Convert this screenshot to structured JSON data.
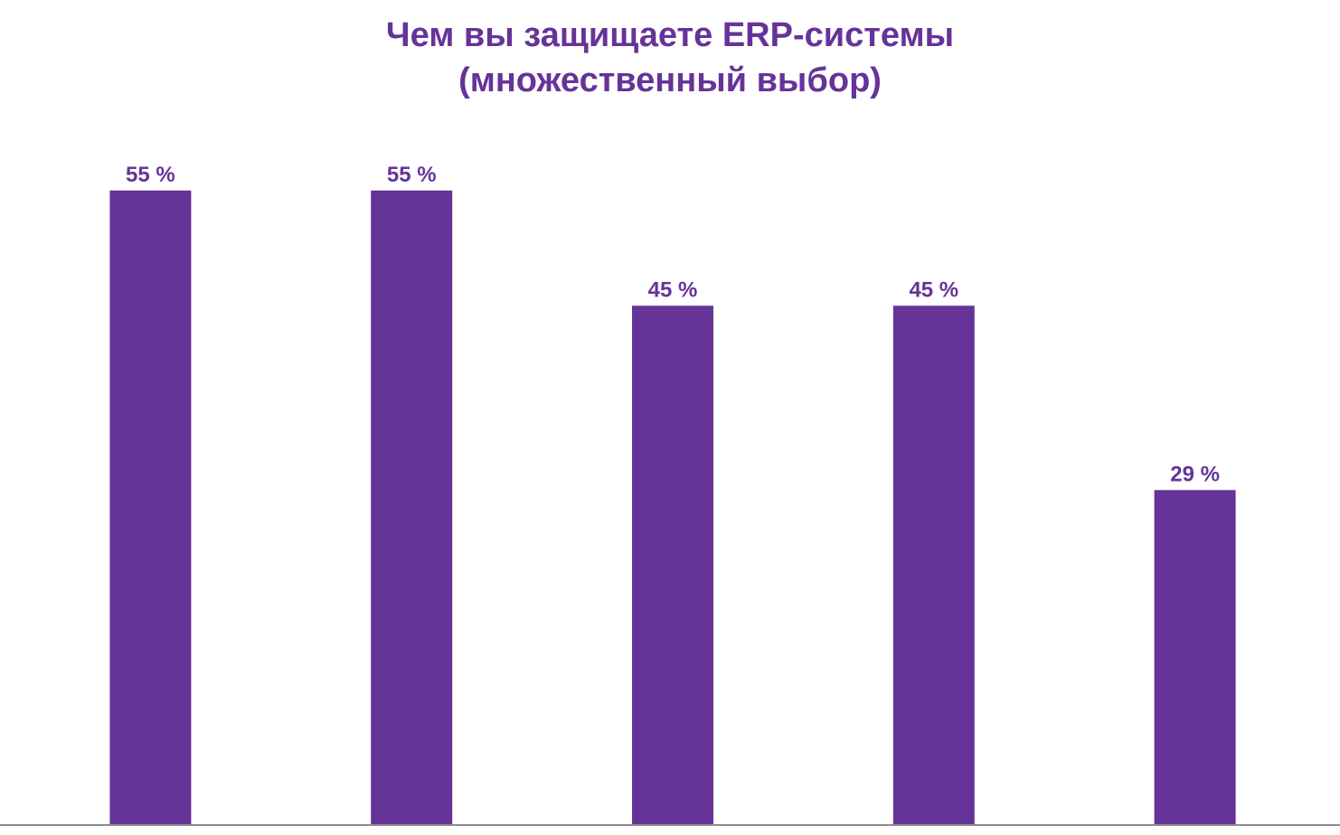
{
  "chart_data": {
    "type": "bar",
    "title": "Чем вы защищаете ERP-системы",
    "subtitle": "(множественный выбор)",
    "categories": [
      "",
      "",
      "",
      "",
      ""
    ],
    "values": [
      55,
      55,
      45,
      45,
      29
    ],
    "value_labels": [
      "55 %",
      "55 %",
      "45 %",
      "45 %",
      "29 %"
    ],
    "ylim": [
      0,
      60
    ],
    "grid": false,
    "legend": "none",
    "bar_color": "#663399",
    "label_color": "#663399",
    "axis_color": "#8c8c8c"
  }
}
